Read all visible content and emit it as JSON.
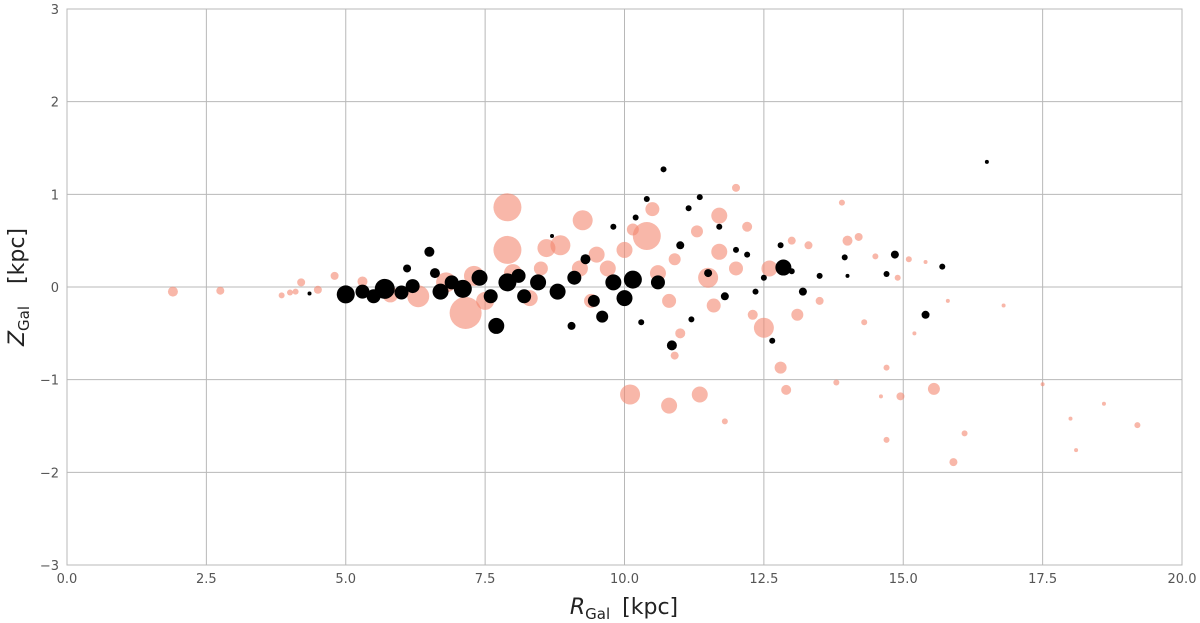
{
  "chart_data": {
    "type": "scatter",
    "title": "",
    "xlabel": {
      "symbol": "R",
      "sub": "Gal",
      "unit": "[kpc]"
    },
    "ylabel": {
      "symbol": "Z",
      "sub": "Gal",
      "unit": "[kpc]"
    },
    "xlim": [
      0,
      20
    ],
    "ylim": [
      -3,
      3
    ],
    "xticks": [
      0,
      2.5,
      5,
      7.5,
      10,
      12.5,
      15,
      17.5,
      20
    ],
    "xtick_labels": [
      "0.0",
      "2.5",
      "5.0",
      "7.5",
      "10.0",
      "12.5",
      "15.0",
      "17.5",
      "20.0"
    ],
    "yticks": [
      -3,
      -2,
      -1,
      0,
      1,
      2,
      3
    ],
    "ytick_labels": [
      "−3",
      "−2",
      "−1",
      "0",
      "1",
      "2",
      "3"
    ],
    "grid": true,
    "series": [
      {
        "color": "#f4876f",
        "opacity": 0.6,
        "points": [
          {
            "x": 1.9,
            "y": -0.05,
            "s": 5
          },
          {
            "x": 2.75,
            "y": -0.04,
            "s": 4
          },
          {
            "x": 3.85,
            "y": -0.09,
            "s": 3
          },
          {
            "x": 4.0,
            "y": -0.06,
            "s": 3
          },
          {
            "x": 4.1,
            "y": -0.05,
            "s": 3
          },
          {
            "x": 4.2,
            "y": 0.05,
            "s": 4
          },
          {
            "x": 4.5,
            "y": -0.03,
            "s": 4
          },
          {
            "x": 4.8,
            "y": 0.12,
            "s": 4
          },
          {
            "x": 5.3,
            "y": 0.06,
            "s": 5
          },
          {
            "x": 5.8,
            "y": -0.08,
            "s": 8
          },
          {
            "x": 6.3,
            "y": -0.1,
            "s": 11
          },
          {
            "x": 6.8,
            "y": 0.05,
            "s": 10
          },
          {
            "x": 7.15,
            "y": -0.28,
            "s": 16
          },
          {
            "x": 7.3,
            "y": 0.12,
            "s": 10
          },
          {
            "x": 7.5,
            "y": -0.15,
            "s": 9
          },
          {
            "x": 7.9,
            "y": 0.86,
            "s": 14
          },
          {
            "x": 7.9,
            "y": 0.4,
            "s": 14
          },
          {
            "x": 8.0,
            "y": 0.15,
            "s": 9
          },
          {
            "x": 8.3,
            "y": -0.12,
            "s": 8
          },
          {
            "x": 8.5,
            "y": 0.2,
            "s": 7
          },
          {
            "x": 8.6,
            "y": 0.42,
            "s": 9
          },
          {
            "x": 8.85,
            "y": 0.45,
            "s": 10
          },
          {
            "x": 9.2,
            "y": 0.2,
            "s": 8
          },
          {
            "x": 9.25,
            "y": 0.72,
            "s": 10
          },
          {
            "x": 9.4,
            "y": -0.15,
            "s": 7
          },
          {
            "x": 9.5,
            "y": 0.35,
            "s": 8
          },
          {
            "x": 9.7,
            "y": 0.2,
            "s": 8
          },
          {
            "x": 10.0,
            "y": 0.4,
            "s": 8
          },
          {
            "x": 10.15,
            "y": 0.62,
            "s": 6
          },
          {
            "x": 10.4,
            "y": 0.55,
            "s": 14
          },
          {
            "x": 10.5,
            "y": 0.84,
            "s": 7
          },
          {
            "x": 10.6,
            "y": 0.15,
            "s": 8
          },
          {
            "x": 10.8,
            "y": -0.15,
            "s": 7
          },
          {
            "x": 10.9,
            "y": 0.3,
            "s": 6
          },
          {
            "x": 11.0,
            "y": -0.5,
            "s": 5
          },
          {
            "x": 11.3,
            "y": 0.6,
            "s": 6
          },
          {
            "x": 11.5,
            "y": 0.1,
            "s": 10
          },
          {
            "x": 11.6,
            "y": -0.2,
            "s": 7
          },
          {
            "x": 11.7,
            "y": 0.38,
            "s": 8
          },
          {
            "x": 11.7,
            "y": 0.77,
            "s": 8
          },
          {
            "x": 12.0,
            "y": 1.07,
            "s": 4
          },
          {
            "x": 12.0,
            "y": 0.2,
            "s": 7
          },
          {
            "x": 12.2,
            "y": 0.65,
            "s": 5
          },
          {
            "x": 12.3,
            "y": -0.3,
            "s": 5
          },
          {
            "x": 12.5,
            "y": -0.44,
            "s": 10
          },
          {
            "x": 12.6,
            "y": 0.2,
            "s": 8
          },
          {
            "x": 12.8,
            "y": -0.87,
            "s": 6
          },
          {
            "x": 12.9,
            "y": -1.11,
            "s": 5
          },
          {
            "x": 13.0,
            "y": 0.5,
            "s": 4
          },
          {
            "x": 13.1,
            "y": -0.3,
            "s": 6
          },
          {
            "x": 13.3,
            "y": 0.45,
            "s": 4
          },
          {
            "x": 13.5,
            "y": -0.15,
            "s": 4
          },
          {
            "x": 13.8,
            "y": -1.03,
            "s": 3
          },
          {
            "x": 13.9,
            "y": 0.91,
            "s": 3
          },
          {
            "x": 14.0,
            "y": 0.5,
            "s": 5
          },
          {
            "x": 14.2,
            "y": 0.54,
            "s": 4
          },
          {
            "x": 14.3,
            "y": -0.38,
            "s": 3
          },
          {
            "x": 14.5,
            "y": 0.33,
            "s": 3
          },
          {
            "x": 14.6,
            "y": -1.18,
            "s": 2
          },
          {
            "x": 14.7,
            "y": -0.87,
            "s": 3
          },
          {
            "x": 14.7,
            "y": -1.65,
            "s": 3
          },
          {
            "x": 14.9,
            "y": 0.1,
            "s": 3
          },
          {
            "x": 14.95,
            "y": -1.18,
            "s": 4
          },
          {
            "x": 15.1,
            "y": 0.3,
            "s": 3
          },
          {
            "x": 15.2,
            "y": -0.5,
            "s": 2
          },
          {
            "x": 15.4,
            "y": 0.27,
            "s": 2
          },
          {
            "x": 15.55,
            "y": -1.1,
            "s": 6
          },
          {
            "x": 15.9,
            "y": -1.89,
            "s": 4
          },
          {
            "x": 16.1,
            "y": -1.58,
            "s": 3
          },
          {
            "x": 15.8,
            "y": -0.15,
            "s": 2
          },
          {
            "x": 16.8,
            "y": -0.2,
            "s": 2
          },
          {
            "x": 17.5,
            "y": -1.05,
            "s": 2
          },
          {
            "x": 18.0,
            "y": -1.42,
            "s": 2
          },
          {
            "x": 18.1,
            "y": -1.76,
            "s": 2
          },
          {
            "x": 18.6,
            "y": -1.26,
            "s": 2
          },
          {
            "x": 19.2,
            "y": -1.49,
            "s": 3
          },
          {
            "x": 10.1,
            "y": -1.16,
            "s": 10
          },
          {
            "x": 10.8,
            "y": -1.28,
            "s": 8
          },
          {
            "x": 11.35,
            "y": -1.16,
            "s": 8
          },
          {
            "x": 10.9,
            "y": -0.74,
            "s": 4
          },
          {
            "x": 11.8,
            "y": -1.45,
            "s": 3
          }
        ]
      },
      {
        "color": "#000000",
        "opacity": 1,
        "points": [
          {
            "x": 4.35,
            "y": -0.07,
            "s": 2
          },
          {
            "x": 5.0,
            "y": -0.08,
            "s": 9
          },
          {
            "x": 5.3,
            "y": -0.05,
            "s": 7
          },
          {
            "x": 5.5,
            "y": -0.1,
            "s": 7
          },
          {
            "x": 5.7,
            "y": -0.02,
            "s": 10
          },
          {
            "x": 6.0,
            "y": -0.06,
            "s": 7
          },
          {
            "x": 6.1,
            "y": 0.2,
            "s": 4
          },
          {
            "x": 6.2,
            "y": 0.01,
            "s": 7
          },
          {
            "x": 6.5,
            "y": 0.38,
            "s": 5
          },
          {
            "x": 6.6,
            "y": 0.15,
            "s": 5
          },
          {
            "x": 6.7,
            "y": -0.05,
            "s": 8
          },
          {
            "x": 6.9,
            "y": 0.05,
            "s": 7
          },
          {
            "x": 7.1,
            "y": -0.02,
            "s": 9
          },
          {
            "x": 7.4,
            "y": 0.1,
            "s": 8
          },
          {
            "x": 7.6,
            "y": -0.1,
            "s": 7
          },
          {
            "x": 7.7,
            "y": -0.42,
            "s": 8
          },
          {
            "x": 7.9,
            "y": 0.05,
            "s": 9
          },
          {
            "x": 8.1,
            "y": 0.12,
            "s": 7
          },
          {
            "x": 8.2,
            "y": -0.1,
            "s": 7
          },
          {
            "x": 8.45,
            "y": 0.05,
            "s": 8
          },
          {
            "x": 8.7,
            "y": 0.55,
            "s": 2
          },
          {
            "x": 8.8,
            "y": -0.05,
            "s": 8
          },
          {
            "x": 9.05,
            "y": -0.42,
            "s": 4
          },
          {
            "x": 9.1,
            "y": 0.1,
            "s": 7
          },
          {
            "x": 9.3,
            "y": 0.3,
            "s": 5
          },
          {
            "x": 9.45,
            "y": -0.15,
            "s": 6
          },
          {
            "x": 9.6,
            "y": -0.32,
            "s": 6
          },
          {
            "x": 9.8,
            "y": 0.05,
            "s": 8
          },
          {
            "x": 9.8,
            "y": 0.65,
            "s": 3
          },
          {
            "x": 10.0,
            "y": -0.12,
            "s": 8
          },
          {
            "x": 10.15,
            "y": 0.08,
            "s": 9
          },
          {
            "x": 10.2,
            "y": 0.75,
            "s": 3
          },
          {
            "x": 10.3,
            "y": -0.38,
            "s": 3
          },
          {
            "x": 10.4,
            "y": 0.95,
            "s": 3
          },
          {
            "x": 10.6,
            "y": 0.05,
            "s": 7
          },
          {
            "x": 10.7,
            "y": 1.27,
            "s": 3
          },
          {
            "x": 10.85,
            "y": -0.63,
            "s": 5
          },
          {
            "x": 11.0,
            "y": 0.45,
            "s": 4
          },
          {
            "x": 11.15,
            "y": 0.85,
            "s": 3
          },
          {
            "x": 11.2,
            "y": -0.35,
            "s": 3
          },
          {
            "x": 11.35,
            "y": 0.97,
            "s": 3
          },
          {
            "x": 11.5,
            "y": 0.15,
            "s": 4
          },
          {
            "x": 11.7,
            "y": 0.65,
            "s": 3
          },
          {
            "x": 11.8,
            "y": -0.1,
            "s": 4
          },
          {
            "x": 12.0,
            "y": 0.4,
            "s": 3
          },
          {
            "x": 12.2,
            "y": 0.35,
            "s": 3
          },
          {
            "x": 12.35,
            "y": -0.05,
            "s": 3
          },
          {
            "x": 12.5,
            "y": 0.1,
            "s": 3
          },
          {
            "x": 12.65,
            "y": -0.58,
            "s": 3
          },
          {
            "x": 12.8,
            "y": 0.45,
            "s": 3
          },
          {
            "x": 12.85,
            "y": 0.21,
            "s": 8
          },
          {
            "x": 13.0,
            "y": 0.17,
            "s": 3
          },
          {
            "x": 13.2,
            "y": -0.05,
            "s": 4
          },
          {
            "x": 13.5,
            "y": 0.12,
            "s": 3
          },
          {
            "x": 13.95,
            "y": 0.32,
            "s": 3
          },
          {
            "x": 14.0,
            "y": 0.12,
            "s": 2
          },
          {
            "x": 14.7,
            "y": 0.14,
            "s": 3
          },
          {
            "x": 14.85,
            "y": 0.35,
            "s": 4
          },
          {
            "x": 15.4,
            "y": -0.3,
            "s": 4
          },
          {
            "x": 15.7,
            "y": 0.22,
            "s": 3
          },
          {
            "x": 16.5,
            "y": 1.35,
            "s": 2
          }
        ]
      }
    ]
  }
}
